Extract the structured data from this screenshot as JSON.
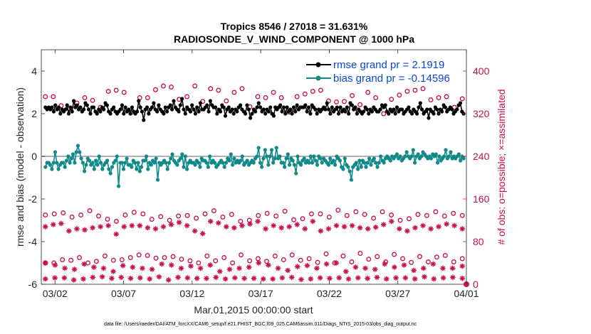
{
  "chart_data": {
    "type": "line",
    "title_line1": "Tropics 8546 / 27018 = 31.631%",
    "title_line2": "RADIOSONDE_V_WIND_COMPONENT @ 1000 hPa",
    "xlabel": "Mar.01,2015 00:00:00 start",
    "ylabel_left": "rmse and bias (model - observation)",
    "ylabel_right": "# of obs: o=possible; ×=assimilated",
    "xlim": [
      1,
      32
    ],
    "ylim_left": [
      -6,
      5
    ],
    "ylim_right": [
      0,
      440
    ],
    "x_ticks": [
      {
        "value": 2,
        "label": "03/02"
      },
      {
        "value": 7,
        "label": "03/07"
      },
      {
        "value": 12,
        "label": "03/12"
      },
      {
        "value": 17,
        "label": "03/17"
      },
      {
        "value": 22,
        "label": "03/22"
      },
      {
        "value": 27,
        "label": "03/27"
      },
      {
        "value": 32,
        "label": "04/01"
      }
    ],
    "y_ticks_left": [
      "4",
      "2",
      "0",
      "-2",
      "-4",
      "-6"
    ],
    "y_ticks_left_values": [
      4,
      2,
      0,
      -2,
      -4,
      -6
    ],
    "y_ticks_right": [
      "400",
      "320",
      "240",
      "160",
      "80",
      "0"
    ],
    "y_ticks_right_values": [
      400,
      320,
      240,
      160,
      80,
      0
    ],
    "zero_line": 0,
    "series": [
      {
        "name": "rmse grand pr = 2.1919",
        "kind": "rmse",
        "color": "#000000",
        "values": [
          2.3,
          2.2,
          2.3,
          2.2,
          2.3,
          2.1,
          2.4,
          2.2,
          2.3,
          2.0,
          2.2,
          2.1,
          2.2,
          2.4,
          2.0,
          2.3,
          2.1,
          2.6,
          2.3,
          2.4,
          2.2,
          2.3,
          2.1,
          2.2,
          2.5,
          2.4,
          2.2,
          2.0,
          2.3,
          2.3,
          2.1,
          2.0,
          2.2,
          2.1,
          2.3,
          2.2,
          2.5,
          2.4,
          2.1,
          2.0,
          2.2,
          2.3,
          2.1,
          2.0,
          2.1,
          2.2,
          2.4,
          2.0,
          2.3,
          2.1,
          2.2,
          2.0,
          2.3,
          2.1,
          2.0,
          2.1,
          2.6,
          2.3,
          2.1,
          1.7,
          2.2,
          2.3,
          2.0,
          2.2,
          2.3,
          2.5,
          2.2,
          2.1,
          2.4,
          2.2,
          2.1,
          2.0,
          2.3,
          2.1,
          2.3,
          2.4,
          2.2,
          2.6,
          2.3,
          2.2,
          2.1,
          2.4,
          2.7,
          2.2,
          2.0,
          2.3,
          2.2,
          2.1,
          2.4,
          2.2,
          2.0,
          2.3,
          2.1,
          2.5,
          2.2,
          2.2,
          2.3,
          2.4,
          2.1,
          2.6,
          2.4,
          2.3,
          2.3,
          2.0,
          2.2,
          2.1,
          2.4,
          2.3,
          1.9,
          2.2,
          2.3,
          2.1,
          2.2,
          2.0,
          2.2,
          2.1,
          2.3,
          2.4,
          2.2,
          2.1,
          2.0,
          2.4,
          2.2,
          1.8,
          2.0,
          2.2,
          2.1,
          2.3,
          2.5,
          2.3,
          2.1,
          2.2,
          2.0,
          2.2,
          2.1,
          2.3,
          2.0,
          1.9,
          2.3,
          2.2,
          2.3,
          2.4,
          2.1,
          2.3,
          2.0,
          2.3,
          2.1,
          2.2,
          2.0,
          2.3,
          2.1,
          2.4,
          2.2,
          2.3,
          2.3,
          2.3,
          2.4,
          2.1,
          2.3,
          2.0,
          2.4,
          2.3,
          2.2,
          2.0,
          2.2,
          2.1,
          2.2,
          2.3,
          2.2,
          2.5,
          2.2,
          2.0,
          2.3,
          2.1,
          2.2,
          2.3,
          2.0,
          2.3,
          2.1,
          2.2,
          2.1,
          2.3,
          2.0,
          2.5,
          2.4,
          2.2,
          2.3,
          2.0,
          2.2,
          2.1,
          2.0,
          2.1,
          2.3,
          2.2,
          2.0,
          2.2,
          2.1,
          2.3,
          2.2,
          2.1,
          2.1,
          2.2,
          2.4,
          2.3,
          2.4,
          2.1,
          2.0,
          2.2,
          2.1,
          2.2,
          2.0,
          2.3,
          2.1,
          2.2,
          2.2,
          2.0,
          2.1,
          2.2,
          2.3,
          2.1,
          2.0,
          2.2,
          2.1,
          2.0,
          2.3,
          2.5,
          2.2,
          2.0,
          2.1,
          2.2,
          1.8,
          2.2,
          2.1,
          2.0,
          2.3,
          2.2,
          2.0,
          2.2,
          2.1,
          2.4,
          2.3,
          2.1,
          2.2,
          2.3,
          2.2,
          2.0,
          2.1,
          2.2,
          2.4,
          2.5,
          2.1,
          2.0
        ]
      },
      {
        "name": "bias grand pr = -0.14596",
        "kind": "bias",
        "color": "#108a88",
        "values": [
          -0.5,
          -0.3,
          -0.3,
          -0.4,
          -0.6,
          -0.3,
          0.2,
          -0.3,
          -0.6,
          -0.4,
          -0.3,
          -0.3,
          -0.5,
          -0.2,
          0.0,
          -0.3,
          -0.1,
          0.1,
          -0.3,
          0.2,
          0.5,
          0.2,
          -0.1,
          -0.3,
          -0.7,
          -0.4,
          -0.1,
          -0.2,
          -0.4,
          -0.3,
          -0.6,
          -0.2,
          -0.4,
          0.0,
          -0.3,
          -0.6,
          -0.4,
          -0.3,
          -0.2,
          -0.6,
          -0.8,
          -0.5,
          -0.3,
          -0.2,
          0.0,
          -1.4,
          -0.3,
          -0.3,
          -0.6,
          -0.3,
          -0.1,
          -0.4,
          -0.4,
          -0.5,
          -0.2,
          -0.3,
          -0.6,
          -0.3,
          -0.7,
          -0.5,
          -0.2,
          -0.2,
          0.0,
          -0.6,
          -0.3,
          -0.4,
          -0.2,
          -0.3,
          -0.1,
          -1.1,
          -0.3,
          -0.4,
          -0.3,
          -0.2,
          -0.3,
          -0.6,
          -0.3,
          -0.1,
          0.1,
          -0.2,
          -0.3,
          -0.4,
          -0.2,
          -0.1,
          0.1,
          -0.5,
          0.0,
          -0.6,
          -0.3,
          -0.2,
          -0.3,
          -0.3,
          -0.4,
          -0.2,
          -0.3,
          -0.5,
          -0.1,
          -0.2,
          -0.2,
          -0.3,
          -0.5,
          0.0,
          -0.3,
          -0.2,
          -0.3,
          -0.5,
          -0.4,
          -0.3,
          -0.2,
          -0.3,
          -0.5,
          -0.3,
          -0.1,
          -0.2,
          0.1,
          -0.4,
          -0.1,
          -0.3,
          -0.2,
          -0.3,
          -0.2,
          0.0,
          -0.4,
          -0.3,
          -0.2,
          -0.4,
          -0.3,
          -0.2,
          -0.3,
          -0.1,
          0.0,
          0.4,
          -0.3,
          -0.5,
          -0.1,
          0.3,
          0.0,
          -0.4,
          0.0,
          0.3,
          -0.3,
          -0.1,
          0.4,
          -0.1,
          0.0,
          -0.3,
          -0.3,
          -0.5,
          -0.1,
          0.1,
          -0.4,
          -0.1,
          -0.2,
          -0.4,
          -0.8,
          0.0,
          -0.3,
          -0.4,
          -0.2,
          -0.1,
          -0.3,
          -0.2,
          -0.3,
          0.0,
          -0.3,
          0.0,
          -0.2,
          -0.4,
          0.0,
          -0.1,
          -0.3,
          -0.1,
          -0.2,
          -0.3,
          -0.4,
          -0.1,
          -0.3,
          -0.2,
          -0.4,
          0.0,
          -0.1,
          -0.2,
          -0.5,
          -0.6,
          -0.1,
          -0.4,
          -0.5,
          -0.7,
          -1.1,
          -0.5,
          -0.4,
          -0.3,
          -0.6,
          -0.2,
          -0.5,
          -0.2,
          -0.3,
          -0.5,
          -0.3,
          -0.1,
          -0.4,
          -0.2,
          -0.1,
          -0.3,
          -0.5,
          -0.3,
          0.0,
          -0.2,
          -0.3,
          -0.1,
          0.0,
          -0.1,
          -0.2,
          0.0,
          -0.1,
          0.0,
          0.1,
          -0.1,
          0.0,
          -0.2,
          -0.1,
          0.0,
          0.2,
          0.0,
          -0.1,
          0.0,
          0.3,
          -0.3,
          0.0,
          0.1,
          -0.1,
          0.0,
          0.2,
          0.1,
          0.0,
          -0.1,
          0.0,
          -0.1,
          0.1,
          0.0,
          0.1,
          -0.3,
          0.0,
          -0.2,
          -0.1,
          0.0,
          0.3,
          -0.1,
          0.0,
          0.2,
          -0.1,
          0.0,
          -0.1,
          0.0,
          0.1,
          -0.2,
          0.0,
          -0.1
        ]
      }
    ],
    "obs_possible_high": [
      352,
      352,
      335,
      330,
      340,
      350,
      345,
      332,
      362,
      364,
      360,
      323,
      350,
      350,
      365,
      372,
      370,
      347,
      352,
      372,
      343,
      367,
      364,
      344,
      360,
      367,
      333,
      352,
      350,
      360,
      350,
      323,
      352,
      357,
      362,
      364,
      344,
      342,
      343,
      354,
      337,
      360,
      350,
      320,
      347,
      355,
      362,
      364,
      367,
      346,
      350,
      352,
      332,
      348
    ],
    "obs_possible_mid": [
      130,
      132,
      134,
      126,
      130,
      138,
      128,
      122,
      118,
      130,
      135,
      132,
      122,
      127,
      120,
      128,
      129,
      124,
      132,
      138,
      126,
      131,
      118,
      120,
      129,
      133,
      128,
      137,
      121,
      123,
      132,
      132,
      126,
      139,
      129,
      136,
      131,
      124,
      136,
      130,
      120,
      123,
      131,
      129,
      136,
      128,
      133,
      129
    ],
    "obs_possible_low": [
      40,
      40,
      46,
      45,
      50,
      40,
      43,
      53,
      45,
      46,
      50,
      55,
      54,
      49,
      50,
      52,
      47,
      44,
      40,
      53,
      44,
      50,
      40,
      55,
      44,
      48,
      43,
      53,
      46,
      55,
      45,
      48,
      41,
      57,
      40,
      53,
      42,
      58,
      47,
      52,
      42,
      56,
      48,
      41,
      52,
      42,
      51,
      54,
      42,
      48
    ],
    "obs_assimilated_high": [
      108,
      112,
      114,
      100,
      104,
      102,
      106,
      108,
      110,
      94,
      108,
      110,
      110,
      106,
      104,
      108,
      112,
      116,
      110,
      100,
      95,
      118,
      115,
      108,
      106,
      110,
      113,
      118,
      104,
      110,
      106,
      108,
      112,
      104,
      118,
      100,
      104,
      110,
      108,
      110,
      106,
      104,
      107,
      112,
      118,
      104,
      100,
      106,
      110,
      104,
      108,
      113,
      110,
      104
    ],
    "obs_assimilated_mid": [
      40,
      36,
      30,
      28,
      38,
      32,
      30,
      24,
      35,
      32,
      30,
      28,
      38,
      36,
      30,
      34,
      30,
      36,
      24,
      28,
      30,
      32,
      40,
      36,
      30,
      26,
      33,
      35,
      30,
      38,
      40,
      24,
      32,
      30,
      28,
      38,
      32,
      36,
      26,
      30,
      38,
      30,
      30,
      34
    ],
    "obs_assimilated_low": [
      10,
      12,
      12,
      8,
      10,
      13,
      14,
      11,
      13,
      11,
      12,
      10,
      14,
      8,
      13,
      12,
      11,
      11,
      13,
      10,
      12,
      11,
      11,
      10,
      10,
      12,
      13,
      9,
      10,
      12,
      11,
      12,
      10,
      12,
      11,
      13,
      10,
      12,
      12,
      10,
      14,
      10,
      12,
      13,
      11
    ],
    "last_obs_marker": {
      "x": 32,
      "y": 0
    }
  },
  "footer": "data file: /Users/raeder/DAI/ATM_forcXX/CAM6_setup/f.e21.FHIST_BGC.f09_025.CAM6assim.011/Diags_NTrS_2015-03/obs_diag_output.nc"
}
